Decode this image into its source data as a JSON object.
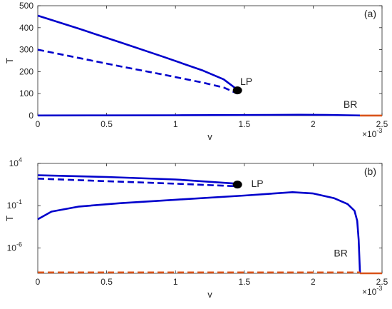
{
  "chart_data": [
    {
      "type": "line",
      "panel_label": "(a)",
      "xlabel": "v",
      "ylabel": "T",
      "x_multiplier_label": "×10",
      "x_multiplier_exp": "-3",
      "xlim": [
        0,
        2.5
      ],
      "ylim": [
        0,
        500
      ],
      "yscale": "linear",
      "xticks": [
        0,
        0.5,
        1,
        1.5,
        2,
        2.5
      ],
      "xtick_labels": [
        "0",
        "0.5",
        "1",
        "1.5",
        "2",
        "2.5"
      ],
      "yticks": [
        0,
        100,
        200,
        300,
        400,
        500
      ],
      "ytick_labels": [
        "0",
        "100",
        "200",
        "300",
        "400",
        "500"
      ],
      "grid": false,
      "series": [
        {
          "style": "solid",
          "color": "#0000cc",
          "x": [
            0,
            0.3,
            0.6,
            0.9,
            1.2,
            1.35,
            1.45
          ],
          "y": [
            455,
            395,
            333,
            270,
            205,
            165,
            118
          ]
        },
        {
          "style": "dashed",
          "color": "#0000cc",
          "x": [
            0,
            0.3,
            0.6,
            0.9,
            1.2,
            1.35,
            1.45
          ],
          "y": [
            300,
            262,
            224,
            188,
            150,
            128,
            100
          ]
        },
        {
          "style": "solid",
          "color": "#0000cc",
          "x": [
            0,
            0.5,
            1.0,
            1.5,
            1.9,
            2.1,
            2.25,
            2.34
          ],
          "y": [
            0.5,
            1,
            1.5,
            2.5,
            4,
            3,
            1.5,
            0.5
          ]
        },
        {
          "style": "solid",
          "color": "#d95319",
          "x": [
            2.34,
            2.5
          ],
          "y": [
            0.3,
            0.3
          ]
        }
      ],
      "markers": [
        {
          "x": 1.45,
          "y": 115,
          "color": "#000000"
        }
      ],
      "annotations": [
        {
          "text": "LP",
          "x": 1.47,
          "y": 140
        },
        {
          "text": "BR",
          "x": 2.22,
          "y": 35
        }
      ]
    },
    {
      "type": "line",
      "panel_label": "(b)",
      "xlabel": "v",
      "ylabel": "T",
      "x_multiplier_label": "×10",
      "x_multiplier_exp": "-3",
      "xlim": [
        0,
        2.5
      ],
      "ylim_log10": [
        -9,
        4
      ],
      "yscale": "log",
      "xticks": [
        0,
        0.5,
        1,
        1.5,
        2,
        2.5
      ],
      "xtick_labels": [
        "0",
        "0.5",
        "1",
        "1.5",
        "2",
        "2.5"
      ],
      "yticks_log10": [
        4,
        -1,
        -6
      ],
      "ytick_labels": [
        {
          "base": "10",
          "exp": "4"
        },
        {
          "base": "10",
          "exp": "-1"
        },
        {
          "base": "10",
          "exp": "-6"
        }
      ],
      "grid": false,
      "series": [
        {
          "style": "solid",
          "color": "#0000cc",
          "x": [
            0,
            0.5,
            1.0,
            1.45
          ],
          "log10_y": [
            2.6,
            2.4,
            2.1,
            1.6
          ]
        },
        {
          "style": "dashed",
          "color": "#0000cc",
          "x": [
            0,
            0.5,
            1.0,
            1.45
          ],
          "log10_y": [
            2.2,
            1.9,
            1.6,
            1.3
          ]
        },
        {
          "style": "solid",
          "color": "#0000cc",
          "x": [
            0,
            0.1,
            0.3,
            0.6,
            1.0,
            1.5,
            1.85,
            2.0,
            2.15,
            2.25,
            2.3,
            2.32,
            2.33,
            2.34
          ],
          "log10_y": [
            -2.6,
            -1.7,
            -1.1,
            -0.7,
            -0.3,
            0.2,
            0.6,
            0.45,
            -0.1,
            -0.8,
            -1.6,
            -2.8,
            -5.0,
            -9.0
          ]
        },
        {
          "style": "solid",
          "color": "#d95319",
          "x": [
            2.34,
            2.5
          ],
          "log10_y": [
            -9.0,
            -9.0
          ]
        },
        {
          "style": "dashed",
          "color": "#d95319",
          "x": [
            0,
            2.34
          ],
          "log10_y": [
            -8.9,
            -8.9
          ]
        }
      ],
      "markers": [
        {
          "x": 1.45,
          "log10_y": 1.5,
          "color": "#000000"
        }
      ],
      "annotations": [
        {
          "text": "LP",
          "x": 1.55,
          "log10_y": 1.2
        },
        {
          "text": "BR",
          "x": 2.15,
          "log10_y": -7.0
        }
      ]
    }
  ]
}
